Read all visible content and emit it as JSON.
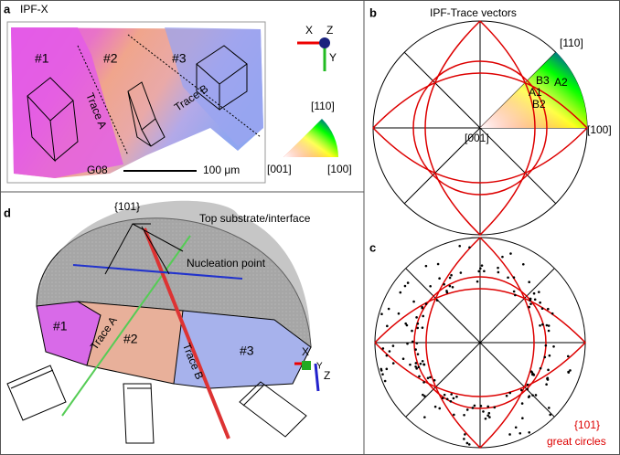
{
  "panels": {
    "a": {
      "label": "a",
      "title": "IPF-X",
      "grains": [
        "#1",
        "#2",
        "#3"
      ],
      "traces": [
        "Trace A",
        "Trace B"
      ],
      "sample": "G08",
      "scale_bar": "100 μm",
      "axes": [
        "X",
        "Z",
        "Y"
      ],
      "key": [
        "[110]",
        "[001]",
        "[100]"
      ]
    },
    "b": {
      "label": "b",
      "title": "IPF-Trace vectors",
      "poles": [
        "[110]",
        "[100]",
        "[001]"
      ],
      "points": [
        "B3",
        "A2",
        "A1",
        "B2"
      ]
    },
    "c": {
      "label": "c",
      "caption": [
        "{101}",
        "great circles"
      ]
    },
    "d": {
      "label": "d",
      "planes": "{101}",
      "top": "Top substrate/interface",
      "nucleation": "Nucleation point",
      "grains": [
        "#1",
        "#2",
        "#3"
      ],
      "traces": [
        "Trace A",
        "Trace B"
      ],
      "axes": [
        "X",
        "Y",
        "Z"
      ]
    }
  }
}
